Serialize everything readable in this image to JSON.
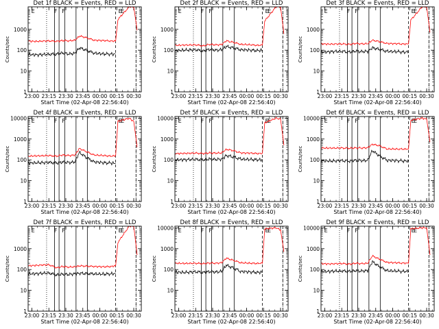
{
  "chart_data": [
    {
      "type": "line",
      "title": "Det 1f BLACK = Events, RED = LLD",
      "xlabel": "Start Time (02-Apr-08 22:56:40)",
      "ylabel": "Counts/sec",
      "yscale": "log",
      "ylim": [
        1,
        12000
      ],
      "xlim": [
        "22:56:40",
        "00:36:40"
      ],
      "x_ticks": [
        "23:00",
        "23:15",
        "23:30",
        "23:45",
        "00:00",
        "00:15",
        "00:30"
      ],
      "y_ticks": [
        "1",
        "10",
        "100",
        "1000"
      ],
      "markers": [
        "E",
        "F",
        "F",
        "E",
        "E"
      ],
      "series": [
        {
          "name": "BLACK = Events",
          "color": "#000000",
          "x": [
            "22:57",
            "23:05",
            "23:15",
            "23:22",
            "23:27",
            "23:33",
            "23:38",
            "23:42",
            "23:48",
            "23:55",
            "00:04",
            "00:10",
            "00:14"
          ],
          "values": [
            62,
            60,
            64,
            65,
            74,
            66,
            70,
            130,
            100,
            72,
            66,
            65,
            64
          ]
        },
        {
          "name": "RED = LLD",
          "color": "#ff0000",
          "x": [
            "22:57",
            "23:05",
            "23:15",
            "23:22",
            "23:27",
            "23:33",
            "23:38",
            "23:42",
            "23:48",
            "23:55",
            "00:04",
            "00:10",
            "00:14",
            "00:16",
            "00:26",
            "00:30",
            "00:33"
          ],
          "values": [
            270,
            265,
            280,
            265,
            290,
            280,
            300,
            480,
            400,
            300,
            290,
            275,
            270,
            3000,
            12000,
            12000,
            900
          ]
        }
      ]
    },
    {
      "type": "line",
      "title": "Det 2f BLACK = Events, RED = LLD",
      "xlabel": "Start Time (02-Apr-08 22:56:40)",
      "ylabel": "Counts/sec",
      "yscale": "log",
      "ylim": [
        1,
        12000
      ],
      "xlim": [
        "22:56:40",
        "00:36:40"
      ],
      "x_ticks": [
        "23:00",
        "23:15",
        "23:30",
        "23:45",
        "00:00",
        "00:15",
        "00:30"
      ],
      "y_ticks": [
        "1",
        "10",
        "100",
        "1000"
      ],
      "markers": [
        "E",
        "F",
        "F",
        "E",
        "E"
      ],
      "series": [
        {
          "name": "BLACK = Events",
          "color": "#000000",
          "x": [
            "22:57",
            "23:05",
            "23:15",
            "23:22",
            "23:27",
            "23:33",
            "23:38",
            "23:42",
            "23:48",
            "23:55",
            "00:04",
            "00:10",
            "00:14"
          ],
          "values": [
            95,
            100,
            105,
            90,
            110,
            100,
            105,
            150,
            130,
            105,
            100,
            95,
            100
          ]
        },
        {
          "name": "RED = LLD",
          "color": "#ff0000",
          "x": [
            "22:57",
            "23:05",
            "23:15",
            "23:22",
            "23:27",
            "23:33",
            "23:38",
            "23:42",
            "23:48",
            "23:55",
            "00:04",
            "00:10",
            "00:14",
            "00:16",
            "00:26",
            "00:30",
            "00:33"
          ],
          "values": [
            170,
            175,
            180,
            160,
            190,
            180,
            185,
            280,
            240,
            190,
            180,
            170,
            175,
            2500,
            12000,
            12000,
            600
          ]
        }
      ]
    },
    {
      "type": "line",
      "title": "Det 3f BLACK = Events, RED = LLD",
      "xlabel": "Start Time (02-Apr-08 22:56:40)",
      "ylabel": "Counts/sec",
      "yscale": "log",
      "ylim": [
        1,
        12000
      ],
      "xlim": [
        "22:56:40",
        "00:36:40"
      ],
      "x_ticks": [
        "23:00",
        "23:15",
        "23:30",
        "23:45",
        "00:00",
        "00:15",
        "00:30"
      ],
      "y_ticks": [
        "1",
        "10",
        "100",
        "1000"
      ],
      "markers": [
        "E",
        "F",
        "F",
        "E",
        "E"
      ],
      "series": [
        {
          "name": "BLACK = Events",
          "color": "#000000",
          "x": [
            "22:57",
            "23:05",
            "23:15",
            "23:22",
            "23:27",
            "23:33",
            "23:38",
            "23:42",
            "23:48",
            "23:55",
            "00:04",
            "00:10",
            "00:14"
          ],
          "values": [
            80,
            85,
            88,
            80,
            90,
            85,
            88,
            130,
            110,
            88,
            85,
            80,
            82
          ]
        },
        {
          "name": "RED = LLD",
          "color": "#ff0000",
          "x": [
            "22:57",
            "23:05",
            "23:15",
            "23:22",
            "23:27",
            "23:33",
            "23:38",
            "23:42",
            "23:48",
            "23:55",
            "00:04",
            "00:10",
            "00:14",
            "00:16",
            "00:26",
            "00:30",
            "00:33"
          ],
          "values": [
            200,
            195,
            200,
            190,
            210,
            200,
            205,
            300,
            260,
            210,
            205,
            195,
            200,
            2800,
            12000,
            12000,
            700
          ]
        }
      ]
    },
    {
      "type": "line",
      "title": "Det 4f BLACK = Events, RED = LLD",
      "xlabel": "Start Time (02-Apr-08 22:56:40)",
      "ylabel": "Counts/sec",
      "yscale": "log",
      "ylim": [
        1,
        12000
      ],
      "xlim": [
        "22:56:40",
        "00:36:40"
      ],
      "x_ticks": [
        "23:00",
        "23:15",
        "23:30",
        "23:45",
        "00:00",
        "00:15",
        "00:30"
      ],
      "y_ticks": [
        "1",
        "10",
        "100",
        "1000",
        "10000"
      ],
      "markers": [
        "E",
        "F",
        "F",
        "E",
        "E"
      ],
      "series": [
        {
          "name": "BLACK = Events",
          "color": "#000000",
          "x": [
            "22:57",
            "23:05",
            "23:15",
            "23:22",
            "23:27",
            "23:33",
            "23:38",
            "23:42",
            "23:48",
            "23:55",
            "00:04",
            "00:10",
            "00:14"
          ],
          "values": [
            70,
            72,
            75,
            70,
            78,
            74,
            80,
            230,
            130,
            80,
            72,
            70,
            68
          ]
        },
        {
          "name": "RED = LLD",
          "color": "#ff0000",
          "x": [
            "22:57",
            "23:05",
            "23:15",
            "23:22",
            "23:27",
            "23:33",
            "23:38",
            "23:42",
            "23:48",
            "23:55",
            "00:04",
            "00:10",
            "00:14",
            "00:16",
            "00:26",
            "00:30",
            "00:33"
          ],
          "values": [
            150,
            155,
            160,
            150,
            170,
            160,
            170,
            350,
            250,
            170,
            160,
            150,
            160,
            7000,
            10000,
            7000,
            400
          ]
        }
      ]
    },
    {
      "type": "line",
      "title": "Det 5f BLACK = Events, RED = LLD",
      "xlabel": "Start Time (02-Apr-08 22:56:40)",
      "ylabel": "Counts/sec",
      "yscale": "log",
      "ylim": [
        1,
        12000
      ],
      "xlim": [
        "22:56:40",
        "00:36:40"
      ],
      "x_ticks": [
        "23:00",
        "23:15",
        "23:30",
        "23:45",
        "00:00",
        "00:15",
        "00:30"
      ],
      "y_ticks": [
        "1",
        "10",
        "100",
        "1000",
        "10000"
      ],
      "markers": [
        "E",
        "F",
        "F",
        "E",
        "E"
      ],
      "series": [
        {
          "name": "BLACK = Events",
          "color": "#000000",
          "x": [
            "22:57",
            "23:05",
            "23:15",
            "23:22",
            "23:27",
            "23:33",
            "23:38",
            "23:42",
            "23:48",
            "23:55",
            "00:04",
            "00:10",
            "00:14"
          ],
          "values": [
            100,
            102,
            105,
            100,
            108,
            104,
            108,
            160,
            140,
            108,
            104,
            100,
            100
          ]
        },
        {
          "name": "RED = LLD",
          "color": "#ff0000",
          "x": [
            "22:57",
            "23:05",
            "23:15",
            "23:22",
            "23:27",
            "23:33",
            "23:38",
            "23:42",
            "23:48",
            "23:55",
            "00:04",
            "00:10",
            "00:14",
            "00:16",
            "00:26",
            "00:30",
            "00:33"
          ],
          "values": [
            200,
            205,
            210,
            200,
            215,
            210,
            215,
            320,
            280,
            215,
            210,
            200,
            210,
            6000,
            10000,
            9000,
            500
          ]
        }
      ]
    },
    {
      "type": "line",
      "title": "Det 6f BLACK = Events, RED = LLD",
      "xlabel": "Start Time (02-Apr-08 22:56:40)",
      "ylabel": "Counts/sec",
      "yscale": "log",
      "ylim": [
        1,
        12000
      ],
      "xlim": [
        "22:56:40",
        "00:36:40"
      ],
      "x_ticks": [
        "23:00",
        "23:15",
        "23:30",
        "23:45",
        "00:00",
        "00:15",
        "00:30"
      ],
      "y_ticks": [
        "1",
        "10",
        "100",
        "1000",
        "10000"
      ],
      "markers": [
        "E",
        "F",
        "F",
        "E",
        "E"
      ],
      "series": [
        {
          "name": "BLACK = Events",
          "color": "#000000",
          "x": [
            "22:57",
            "23:05",
            "23:15",
            "23:22",
            "23:27",
            "23:33",
            "23:38",
            "23:42",
            "23:48",
            "23:55",
            "00:04",
            "00:10",
            "00:14"
          ],
          "values": [
            90,
            88,
            92,
            88,
            95,
            92,
            95,
            280,
            160,
            95,
            92,
            88,
            90
          ]
        },
        {
          "name": "RED = LLD",
          "color": "#ff0000",
          "x": [
            "22:57",
            "23:05",
            "23:15",
            "23:22",
            "23:27",
            "23:33",
            "23:38",
            "23:42",
            "23:48",
            "23:55",
            "00:04",
            "00:10",
            "00:14",
            "00:16",
            "00:26",
            "00:30",
            "00:33"
          ],
          "values": [
            370,
            365,
            370,
            360,
            375,
            370,
            380,
            560,
            480,
            330,
            330,
            330,
            330,
            8000,
            10000,
            9000,
            700
          ]
        }
      ]
    },
    {
      "type": "line",
      "title": "Det 7f BLACK = Events, RED = LLD",
      "xlabel": "Start Time (02-Apr-08 22:56:40)",
      "ylabel": "Counts/sec",
      "yscale": "log",
      "ylim": [
        1,
        12000
      ],
      "xlim": [
        "22:56:40",
        "00:36:40"
      ],
      "x_ticks": [
        "23:00",
        "23:15",
        "23:30",
        "23:45",
        "00:00",
        "00:15",
        "00:30"
      ],
      "y_ticks": [
        "1",
        "10",
        "100",
        "1000"
      ],
      "markers": [
        "E",
        "F",
        "F",
        "E",
        "E"
      ],
      "series": [
        {
          "name": "BLACK = Events",
          "color": "#000000",
          "x": [
            "22:57",
            "23:05",
            "23:15",
            "23:22",
            "23:27",
            "23:33",
            "23:38",
            "23:42",
            "23:48",
            "23:55",
            "00:04",
            "00:10",
            "00:14"
          ],
          "values": [
            62,
            64,
            68,
            55,
            60,
            58,
            62,
            66,
            64,
            62,
            60,
            62,
            64
          ]
        },
        {
          "name": "RED = LLD",
          "color": "#ff0000",
          "x": [
            "22:57",
            "23:05",
            "23:15",
            "23:22",
            "23:27",
            "23:33",
            "23:38",
            "23:42",
            "23:48",
            "23:55",
            "00:04",
            "00:10",
            "00:14",
            "00:16",
            "00:26",
            "00:30",
            "00:33"
          ],
          "values": [
            150,
            160,
            170,
            120,
            140,
            130,
            135,
            150,
            145,
            140,
            135,
            140,
            150,
            2000,
            12000,
            12000,
            500
          ]
        }
      ]
    },
    {
      "type": "line",
      "title": "Det 8f BLACK = Events, RED = LLD",
      "xlabel": "Start Time (02-Apr-08 22:56:40)",
      "ylabel": "Counts/sec",
      "yscale": "log",
      "ylim": [
        1,
        12000
      ],
      "xlim": [
        "22:56:40",
        "00:36:40"
      ],
      "x_ticks": [
        "23:00",
        "23:15",
        "23:30",
        "23:45",
        "00:00",
        "00:15",
        "00:30"
      ],
      "y_ticks": [
        "1",
        "10",
        "100",
        "1000",
        "10000"
      ],
      "markers": [
        "E",
        "F",
        "F",
        "E",
        "E"
      ],
      "series": [
        {
          "name": "BLACK = Events",
          "color": "#000000",
          "x": [
            "22:57",
            "23:05",
            "23:15",
            "23:22",
            "23:27",
            "23:33",
            "23:38",
            "23:42",
            "23:48",
            "23:55",
            "00:04",
            "00:10",
            "00:14"
          ],
          "values": [
            75,
            72,
            78,
            72,
            80,
            76,
            80,
            160,
            120,
            80,
            76,
            72,
            75
          ]
        },
        {
          "name": "RED = LLD",
          "color": "#ff0000",
          "x": [
            "22:57",
            "23:05",
            "23:15",
            "23:22",
            "23:27",
            "23:33",
            "23:38",
            "23:42",
            "23:48",
            "23:55",
            "00:04",
            "00:10",
            "00:14",
            "00:16",
            "00:26",
            "00:30",
            "00:33"
          ],
          "values": [
            200,
            195,
            200,
            190,
            205,
            200,
            210,
            350,
            280,
            210,
            200,
            195,
            200,
            9000,
            10000,
            8000,
            700
          ]
        }
      ]
    },
    {
      "type": "line",
      "title": "Det 9f BLACK = Events, RED = LLD",
      "xlabel": "Start Time (02-Apr-08 22:56:40)",
      "ylabel": "Counts/sec",
      "yscale": "log",
      "ylim": [
        1,
        12000
      ],
      "xlim": [
        "22:56:40",
        "00:36:40"
      ],
      "x_ticks": [
        "23:00",
        "23:15",
        "23:30",
        "23:45",
        "00:00",
        "00:15",
        "00:30"
      ],
      "y_ticks": [
        "1",
        "10",
        "100",
        "1000",
        "10000"
      ],
      "markers": [
        "E",
        "F",
        "F",
        "E",
        "E"
      ],
      "series": [
        {
          "name": "BLACK = Events",
          "color": "#000000",
          "x": [
            "22:57",
            "23:05",
            "23:15",
            "23:22",
            "23:27",
            "23:33",
            "23:38",
            "23:42",
            "23:48",
            "23:55",
            "00:04",
            "00:10",
            "00:14"
          ],
          "values": [
            80,
            82,
            85,
            80,
            88,
            84,
            88,
            240,
            140,
            88,
            84,
            80,
            82
          ]
        },
        {
          "name": "RED = LLD",
          "color": "#ff0000",
          "x": [
            "22:57",
            "23:05",
            "23:15",
            "23:22",
            "23:27",
            "23:33",
            "23:38",
            "23:42",
            "23:48",
            "23:55",
            "00:04",
            "00:10",
            "00:14",
            "00:16",
            "00:26",
            "00:30",
            "00:33"
          ],
          "values": [
            190,
            185,
            195,
            180,
            200,
            190,
            200,
            450,
            320,
            220,
            210,
            200,
            200,
            9000,
            10000,
            10000,
            500
          ]
        }
      ]
    }
  ]
}
